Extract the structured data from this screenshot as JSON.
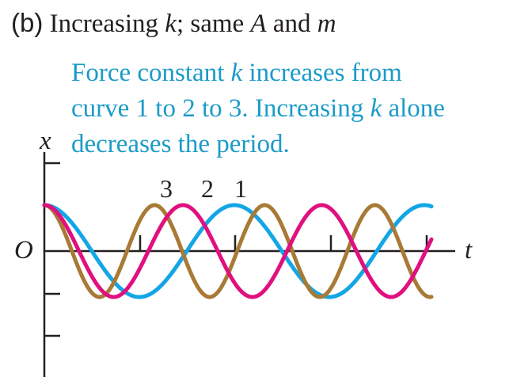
{
  "title": {
    "part": "(b)",
    "text_1": " Increasing ",
    "var_k": "k",
    "text_2": "; same ",
    "var_A": "A",
    "text_3": " and ",
    "var_m": "m"
  },
  "note": {
    "line1_a": "Force constant ",
    "line1_k": "k",
    "line1_b": " increases from",
    "line2_a": "curve 1 to 2 to 3. Increasing ",
    "line2_k": "k",
    "line2_b": " alone",
    "line3": "decreases the period."
  },
  "axes": {
    "y_label": "x",
    "x_label": "t",
    "origin_label": "O"
  },
  "curves": [
    {
      "label": "3",
      "color": "#a87a36",
      "period_rel": 0.58
    },
    {
      "label": "2",
      "color": "#e0107e",
      "period_rel": 0.73
    },
    {
      "label": "1",
      "color": "#13a6e6",
      "period_rel": 1.0
    }
  ]
}
